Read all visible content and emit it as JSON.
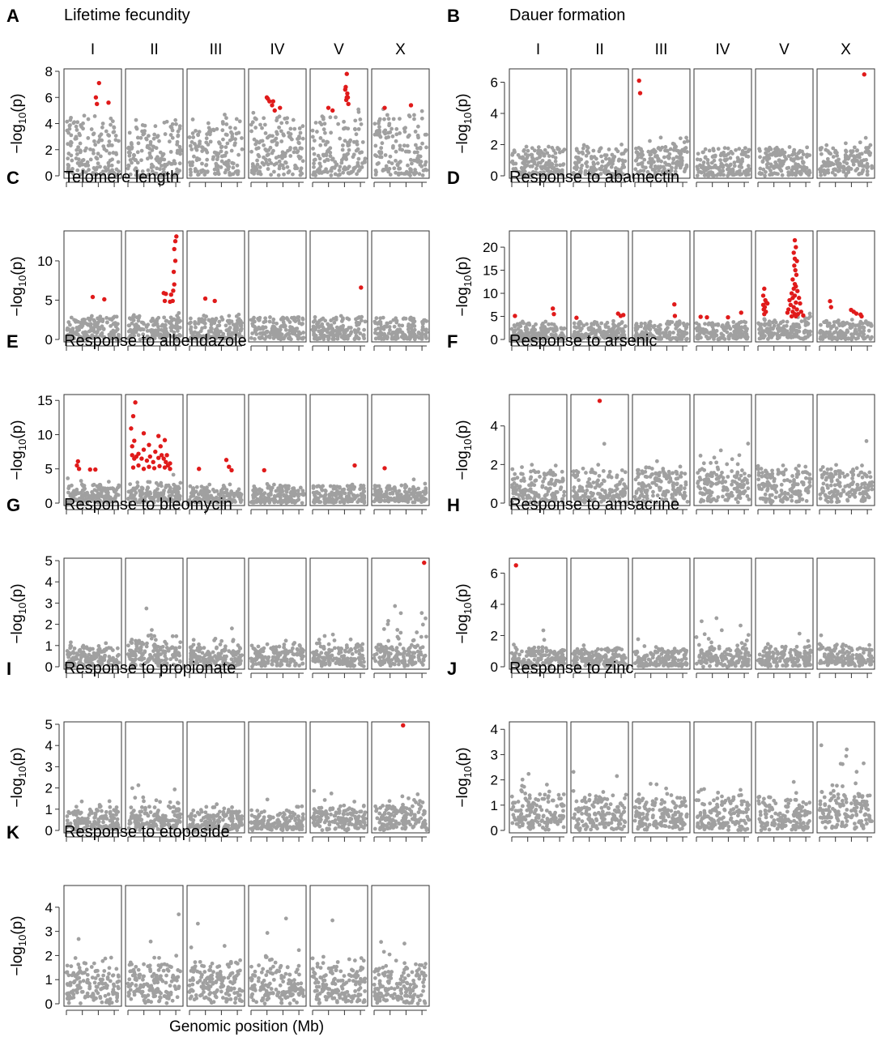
{
  "xlabel": "Genomic position (Mb)",
  "ylabel": "−log10(p)",
  "colors": {
    "significant": "#e01a1a",
    "background": "#a0a0a0",
    "frame": "#333333"
  },
  "chromosomes": [
    "I",
    "II",
    "III",
    "IV",
    "V",
    "X"
  ],
  "chart_data": [
    {
      "panel": "A",
      "title": "Lifetime fecundity",
      "type": "scatter",
      "ylim": [
        0,
        8
      ],
      "yticks": [
        0,
        2,
        4,
        6,
        8
      ],
      "show_chrom_labels": true,
      "baseline": 4.4,
      "peaks": {
        "I": [
          1.0,
          0
        ],
        "II": [
          0,
          0
        ],
        "III": [
          1.0,
          0
        ],
        "IV": [
          1.1,
          0
        ],
        "V": [
          1.5,
          1.0
        ],
        "X": [
          1.2,
          0
        ]
      },
      "significant": {
        "I": [
          [
            0.62,
            7.1
          ],
          [
            0.56,
            6.0
          ],
          [
            0.58,
            5.5
          ],
          [
            0.8,
            5.6
          ]
        ],
        "IV": [
          [
            0.3,
            6.0
          ],
          [
            0.35,
            5.7
          ],
          [
            0.4,
            5.4
          ],
          [
            0.45,
            5.0
          ],
          [
            0.55,
            5.2
          ],
          [
            0.32,
            5.9
          ],
          [
            0.42,
            5.7
          ]
        ],
        "V": [
          [
            0.3,
            5.2
          ],
          [
            0.38,
            5.0
          ],
          [
            0.65,
            7.8
          ],
          [
            0.63,
            6.8
          ],
          [
            0.66,
            6.3
          ],
          [
            0.64,
            5.8
          ],
          [
            0.67,
            6.0
          ],
          [
            0.62,
            6.6
          ],
          [
            0.68,
            5.5
          ],
          [
            0.65,
            6.0
          ]
        ],
        "X": [
          [
            0.2,
            5.2
          ],
          [
            0.7,
            5.4
          ]
        ]
      }
    },
    {
      "panel": "B",
      "title": "Dauer formation",
      "type": "scatter",
      "ylim": [
        0,
        6.7
      ],
      "yticks": [
        0,
        2,
        4,
        6
      ],
      "show_chrom_labels": true,
      "baseline": 1.8,
      "peaks": {
        "I": [
          0.4,
          0
        ],
        "II": [
          0.3,
          0
        ],
        "III": [
          2.0,
          1.0
        ],
        "IV": [
          0.3,
          0
        ],
        "V": [
          0.5,
          0
        ],
        "X": [
          1.4,
          1.0
        ]
      },
      "significant": {
        "III": [
          [
            0.08,
            6.1
          ],
          [
            0.1,
            5.3
          ]
        ],
        "X": [
          [
            0.85,
            6.5
          ]
        ]
      }
    },
    {
      "panel": "C",
      "title": "Telomere length",
      "type": "scatter",
      "ylim": [
        0,
        13.5
      ],
      "yticks": [
        0,
        5,
        10
      ],
      "show_chrom_labels": false,
      "baseline": 2.8,
      "peaks": {
        "I": [
          0.8,
          0
        ],
        "II": [
          2.0,
          1.0
        ],
        "III": [
          1.5,
          0
        ],
        "IV": [
          0.5,
          0
        ],
        "V": [
          0.5,
          0
        ],
        "X": [
          0.3,
          0
        ]
      },
      "significant": {
        "I": [
          [
            0.5,
            5.4
          ],
          [
            0.72,
            5.1
          ]
        ],
        "II": [
          [
            0.92,
            13.1
          ],
          [
            0.9,
            12.5
          ],
          [
            0.88,
            11.5
          ],
          [
            0.9,
            10.0
          ],
          [
            0.87,
            8.6
          ],
          [
            0.88,
            7.0
          ],
          [
            0.86,
            6.2
          ],
          [
            0.68,
            5.9
          ],
          [
            0.72,
            5.8
          ],
          [
            0.82,
            5.7
          ],
          [
            0.7,
            4.9
          ],
          [
            0.8,
            4.8
          ],
          [
            0.85,
            4.9
          ]
        ],
        "III": [
          [
            0.3,
            5.2
          ],
          [
            0.48,
            4.9
          ]
        ],
        "V": [
          [
            0.92,
            6.6
          ]
        ]
      }
    },
    {
      "panel": "D",
      "title": "Response to abamectin",
      "type": "scatter",
      "ylim": [
        0,
        23
      ],
      "yticks": [
        0,
        5,
        10,
        15,
        20
      ],
      "show_chrom_labels": false,
      "baseline": 3.8,
      "peaks": {
        "I": [
          0.5,
          0
        ],
        "II": [
          1.0,
          0
        ],
        "III": [
          0.5,
          0
        ],
        "IV": [
          0.6,
          0
        ],
        "V": [
          3.0,
          1.0
        ],
        "X": [
          1.5,
          0
        ]
      },
      "significant": {
        "I": [
          [
            0.06,
            5.1
          ],
          [
            0.78,
            6.7
          ],
          [
            0.8,
            5.5
          ]
        ],
        "II": [
          [
            0.06,
            4.7
          ],
          [
            0.85,
            5.6
          ],
          [
            0.9,
            5.1
          ],
          [
            0.95,
            5.3
          ]
        ],
        "III": [
          [
            0.75,
            7.6
          ],
          [
            0.76,
            5.1
          ]
        ],
        "IV": [
          [
            0.08,
            4.9
          ],
          [
            0.2,
            4.8
          ],
          [
            0.6,
            4.8
          ],
          [
            0.85,
            5.8
          ]
        ],
        "V": [
          [
            0.12,
            11.0
          ],
          [
            0.1,
            9.5
          ],
          [
            0.14,
            8.5
          ],
          [
            0.1,
            7.5
          ],
          [
            0.13,
            7.0
          ],
          [
            0.16,
            8.0
          ],
          [
            0.11,
            6.5
          ],
          [
            0.15,
            6.0
          ],
          [
            0.12,
            5.5
          ],
          [
            0.18,
            7.8
          ],
          [
            0.7,
            21.5
          ],
          [
            0.72,
            20.0
          ],
          [
            0.68,
            18.8
          ],
          [
            0.7,
            17.5
          ],
          [
            0.74,
            17.0
          ],
          [
            0.69,
            16.0
          ],
          [
            0.71,
            15.0
          ],
          [
            0.73,
            14.0
          ],
          [
            0.66,
            13.0
          ],
          [
            0.7,
            12.0
          ],
          [
            0.72,
            11.5
          ],
          [
            0.68,
            11.0
          ],
          [
            0.75,
            10.5
          ],
          [
            0.64,
            10.0
          ],
          [
            0.7,
            9.5
          ],
          [
            0.66,
            9.0
          ],
          [
            0.78,
            9.0
          ],
          [
            0.6,
            8.5
          ],
          [
            0.72,
            8.0
          ],
          [
            0.62,
            7.5
          ],
          [
            0.8,
            7.8
          ],
          [
            0.68,
            7.0
          ],
          [
            0.74,
            6.5
          ],
          [
            0.58,
            6.5
          ],
          [
            0.82,
            6.0
          ],
          [
            0.66,
            6.0
          ],
          [
            0.7,
            5.5
          ],
          [
            0.76,
            5.5
          ],
          [
            0.56,
            5.8
          ],
          [
            0.86,
            5.2
          ],
          [
            0.64,
            5.0
          ],
          [
            0.72,
            5.0
          ]
        ],
        "X": [
          [
            0.2,
            8.3
          ],
          [
            0.22,
            7.0
          ],
          [
            0.6,
            6.4
          ],
          [
            0.65,
            6.0
          ],
          [
            0.7,
            5.6
          ],
          [
            0.78,
            5.4
          ],
          [
            0.8,
            5.0
          ]
        ]
      }
    },
    {
      "panel": "E",
      "title": "Response to albendazole",
      "type": "scatter",
      "ylim": [
        0,
        15.5
      ],
      "yticks": [
        0,
        5,
        10,
        15
      ],
      "show_chrom_labels": false,
      "baseline": 2.5,
      "peaks": {
        "I": [
          1.5,
          0
        ],
        "II": [
          2.5,
          1.0
        ],
        "III": [
          1.0,
          0
        ],
        "IV": [
          1.2,
          0
        ],
        "V": [
          1.0,
          0
        ],
        "X": [
          1.2,
          0
        ]
      },
      "significant": {
        "I": [
          [
            0.22,
            6.1
          ],
          [
            0.2,
            5.5
          ],
          [
            0.24,
            5.0
          ],
          [
            0.45,
            4.9
          ],
          [
            0.55,
            4.9
          ]
        ],
        "II": [
          [
            0.06,
            10.9
          ],
          [
            0.1,
            12.7
          ],
          [
            0.14,
            14.7
          ],
          [
            0.08,
            8.3
          ],
          [
            0.12,
            9.1
          ],
          [
            0.3,
            10.2
          ],
          [
            0.4,
            8.5
          ],
          [
            0.58,
            9.8
          ],
          [
            0.62,
            8.3
          ],
          [
            0.7,
            9.2
          ],
          [
            0.08,
            7.0
          ],
          [
            0.12,
            6.5
          ],
          [
            0.16,
            6.8
          ],
          [
            0.2,
            7.2
          ],
          [
            0.26,
            6.5
          ],
          [
            0.3,
            7.8
          ],
          [
            0.36,
            6.2
          ],
          [
            0.42,
            6.8
          ],
          [
            0.48,
            6.0
          ],
          [
            0.52,
            7.5
          ],
          [
            0.58,
            6.6
          ],
          [
            0.64,
            7.0
          ],
          [
            0.68,
            6.5
          ],
          [
            0.72,
            6.0
          ],
          [
            0.74,
            7.0
          ],
          [
            0.76,
            5.5
          ],
          [
            0.8,
            5.8
          ],
          [
            0.1,
            5.2
          ],
          [
            0.2,
            5.5
          ],
          [
            0.3,
            5.0
          ],
          [
            0.4,
            5.3
          ],
          [
            0.5,
            5.1
          ],
          [
            0.6,
            5.4
          ],
          [
            0.7,
            5.2
          ],
          [
            0.8,
            5.0
          ]
        ],
        "III": [
          [
            0.18,
            5.0
          ],
          [
            0.7,
            6.3
          ],
          [
            0.75,
            5.3
          ],
          [
            0.8,
            4.8
          ]
        ],
        "IV": [
          [
            0.25,
            4.8
          ]
        ],
        "V": [
          [
            0.8,
            5.5
          ]
        ],
        "X": [
          [
            0.2,
            5.1
          ]
        ]
      }
    },
    {
      "panel": "F",
      "title": "Response to arsenic",
      "type": "scatter",
      "ylim": [
        0,
        5.5
      ],
      "yticks": [
        0,
        2,
        4
      ],
      "show_chrom_labels": false,
      "baseline": 1.6,
      "peaks": {
        "I": [
          1.0,
          0
        ],
        "II": [
          1.4,
          0
        ],
        "III": [
          1.8,
          0
        ],
        "IV": [
          2.4,
          0
        ],
        "V": [
          1.5,
          0
        ],
        "X": [
          1.8,
          0
        ]
      },
      "significant": {
        "II": [
          [
            0.5,
            5.3
          ]
        ]
      }
    },
    {
      "panel": "G",
      "title": "Response to bleomycin",
      "type": "scatter",
      "ylim": [
        0,
        5
      ],
      "yticks": [
        0,
        1,
        2,
        3,
        4,
        5
      ],
      "show_chrom_labels": false,
      "baseline": 0.9,
      "peaks": {
        "I": [
          0.6,
          0
        ],
        "II": [
          1.6,
          0.4
        ],
        "III": [
          1.5,
          0.0
        ],
        "IV": [
          0.9,
          0
        ],
        "V": [
          1.0,
          0
        ],
        "X": [
          2.4,
          1.0
        ]
      },
      "significant": {
        "X": [
          [
            0.95,
            4.9
          ]
        ]
      }
    },
    {
      "panel": "H",
      "title": "Response to amsacrine",
      "type": "scatter",
      "ylim": [
        0,
        6.8
      ],
      "yticks": [
        0,
        2,
        4,
        6
      ],
      "show_chrom_labels": false,
      "baseline": 1.1,
      "peaks": {
        "I": [
          1.2,
          0
        ],
        "II": [
          0.9,
          0
        ],
        "III": [
          0.7,
          0
        ],
        "IV": [
          2.2,
          0.0
        ],
        "V": [
          1.2,
          0
        ],
        "X": [
          1.5,
          0
        ]
      },
      "significant": {
        "I": [
          [
            0.08,
            6.5
          ]
        ]
      }
    },
    {
      "panel": "I",
      "title": "Response to propionate",
      "type": "scatter",
      "ylim": [
        0,
        5
      ],
      "yticks": [
        0,
        1,
        2,
        3,
        4,
        5
      ],
      "show_chrom_labels": false,
      "baseline": 0.9,
      "peaks": {
        "I": [
          1.0,
          0
        ],
        "II": [
          1.5,
          0
        ],
        "III": [
          0.8,
          0
        ],
        "IV": [
          0.8,
          0
        ],
        "V": [
          1.3,
          0
        ],
        "X": [
          2.0,
          0
        ]
      },
      "significant": {
        "X": [
          [
            0.55,
            4.95
          ]
        ]
      }
    },
    {
      "panel": "J",
      "title": "Response to zinc",
      "type": "scatter",
      "ylim": [
        0,
        4.2
      ],
      "yticks": [
        0,
        1,
        2,
        3,
        4
      ],
      "show_chrom_labels": false,
      "baseline": 1.2,
      "peaks": {
        "I": [
          2.0,
          0
        ],
        "II": [
          1.4,
          0
        ],
        "III": [
          1.6,
          0
        ],
        "IV": [
          1.0,
          0
        ],
        "V": [
          0.8,
          0
        ],
        "X": [
          2.4,
          0
        ]
      },
      "significant": {}
    },
    {
      "panel": "K",
      "title": "Response to etoposide",
      "type": "scatter",
      "ylim": [
        0,
        4.8
      ],
      "yticks": [
        0,
        1,
        2,
        3,
        4
      ],
      "show_chrom_labels": false,
      "baseline": 1.4,
      "peaks": {
        "I": [
          1.8,
          0
        ],
        "II": [
          2.5,
          0
        ],
        "III": [
          2.5,
          0
        ],
        "IV": [
          2.0,
          0
        ],
        "V": [
          1.8,
          0
        ],
        "X": [
          2.0,
          0
        ]
      },
      "significant": {}
    }
  ]
}
